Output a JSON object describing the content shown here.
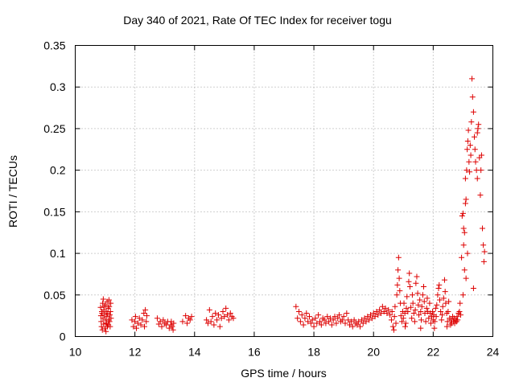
{
  "chart_data": {
    "type": "scatter",
    "title": "Day 340 of 2021, Rate Of TEC Index for receiver togu",
    "xlabel": "GPS time / hours",
    "ylabel": "ROTI / TECUs",
    "xlim": [
      10,
      24
    ],
    "ylim": [
      0,
      0.35
    ],
    "x_ticks": [
      "10",
      "12",
      "14",
      "16",
      "18",
      "20",
      "22",
      "24"
    ],
    "y_ticks": [
      "0",
      "0.05",
      "0.1",
      "0.15",
      "0.2",
      "0.25",
      "0.3",
      "0.35"
    ],
    "grid": true,
    "legend": "none",
    "marker": "+",
    "color": "#dd0000",
    "points": [
      [
        10.85,
        0.035
      ],
      [
        10.87,
        0.018
      ],
      [
        10.88,
        0.012
      ],
      [
        10.9,
        0.028
      ],
      [
        10.92,
        0.04
      ],
      [
        10.93,
        0.022
      ],
      [
        10.95,
        0.015
      ],
      [
        10.96,
        0.032
      ],
      [
        10.98,
        0.026
      ],
      [
        11.0,
        0.01
      ],
      [
        11.01,
        0.02
      ],
      [
        11.02,
        0.038
      ],
      [
        11.04,
        0.03
      ],
      [
        11.05,
        0.016
      ],
      [
        11.06,
        0.024
      ],
      [
        11.07,
        0.042
      ],
      [
        11.08,
        0.012
      ],
      [
        11.09,
        0.028
      ],
      [
        11.1,
        0.034
      ],
      [
        11.12,
        0.02
      ],
      [
        11.13,
        0.044
      ],
      [
        11.15,
        0.018
      ],
      [
        11.16,
        0.026
      ],
      [
        11.18,
        0.03
      ],
      [
        11.2,
        0.022
      ],
      [
        10.86,
        0.025
      ],
      [
        10.91,
        0.008
      ],
      [
        10.97,
        0.036
      ],
      [
        11.03,
        0.006
      ],
      [
        11.11,
        0.014
      ],
      [
        11.14,
        0.036
      ],
      [
        11.17,
        0.012
      ],
      [
        11.19,
        0.04
      ],
      [
        10.89,
        0.03
      ],
      [
        10.94,
        0.045
      ],
      [
        11.9,
        0.02
      ],
      [
        11.95,
        0.012
      ],
      [
        12.0,
        0.018
      ],
      [
        12.02,
        0.024
      ],
      [
        12.05,
        0.01
      ],
      [
        12.1,
        0.016
      ],
      [
        12.15,
        0.022
      ],
      [
        12.2,
        0.014
      ],
      [
        12.25,
        0.02
      ],
      [
        12.3,
        0.028
      ],
      [
        12.32,
        0.012
      ],
      [
        12.35,
        0.032
      ],
      [
        12.38,
        0.018
      ],
      [
        12.4,
        0.025
      ],
      [
        12.75,
        0.022
      ],
      [
        12.8,
        0.015
      ],
      [
        12.85,
        0.018
      ],
      [
        12.9,
        0.012
      ],
      [
        12.95,
        0.02
      ],
      [
        13.0,
        0.016
      ],
      [
        13.05,
        0.014
      ],
      [
        13.1,
        0.018
      ],
      [
        13.15,
        0.01
      ],
      [
        13.2,
        0.014
      ],
      [
        13.25,
        0.012
      ],
      [
        13.3,
        0.016
      ],
      [
        13.28,
        0.008
      ],
      [
        13.22,
        0.018
      ],
      [
        13.6,
        0.018
      ],
      [
        13.7,
        0.025
      ],
      [
        13.75,
        0.016
      ],
      [
        13.8,
        0.022
      ],
      [
        13.85,
        0.02
      ],
      [
        13.9,
        0.024
      ],
      [
        14.4,
        0.02
      ],
      [
        14.45,
        0.016
      ],
      [
        14.5,
        0.032
      ],
      [
        14.55,
        0.018
      ],
      [
        14.6,
        0.024
      ],
      [
        14.65,
        0.014
      ],
      [
        14.7,
        0.028
      ],
      [
        14.75,
        0.02
      ],
      [
        14.8,
        0.026
      ],
      [
        14.85,
        0.012
      ],
      [
        14.9,
        0.022
      ],
      [
        14.95,
        0.03
      ],
      [
        15.0,
        0.024
      ],
      [
        15.05,
        0.034
      ],
      [
        15.1,
        0.026
      ],
      [
        15.15,
        0.02
      ],
      [
        15.2,
        0.028
      ],
      [
        15.25,
        0.024
      ],
      [
        15.3,
        0.022
      ],
      [
        17.4,
        0.036
      ],
      [
        17.45,
        0.022
      ],
      [
        17.5,
        0.03
      ],
      [
        17.55,
        0.018
      ],
      [
        17.6,
        0.026
      ],
      [
        17.65,
        0.014
      ],
      [
        17.7,
        0.022
      ],
      [
        17.75,
        0.028
      ],
      [
        17.8,
        0.018
      ],
      [
        17.85,
        0.024
      ],
      [
        17.9,
        0.016
      ],
      [
        17.95,
        0.02
      ],
      [
        18.0,
        0.012
      ],
      [
        18.05,
        0.022
      ],
      [
        18.1,
        0.016
      ],
      [
        18.15,
        0.026
      ],
      [
        18.2,
        0.018
      ],
      [
        18.25,
        0.014
      ],
      [
        18.3,
        0.022
      ],
      [
        18.35,
        0.02
      ],
      [
        18.4,
        0.016
      ],
      [
        18.45,
        0.024
      ],
      [
        18.5,
        0.018
      ],
      [
        18.55,
        0.022
      ],
      [
        18.6,
        0.014
      ],
      [
        18.65,
        0.02
      ],
      [
        18.7,
        0.024
      ],
      [
        18.75,
        0.016
      ],
      [
        18.8,
        0.022
      ],
      [
        18.85,
        0.026
      ],
      [
        18.9,
        0.018
      ],
      [
        18.95,
        0.02
      ],
      [
        19.0,
        0.024
      ],
      [
        19.05,
        0.016
      ],
      [
        19.1,
        0.028
      ],
      [
        19.15,
        0.02
      ],
      [
        19.2,
        0.014
      ],
      [
        19.25,
        0.018
      ],
      [
        19.3,
        0.012
      ],
      [
        19.35,
        0.02
      ],
      [
        19.4,
        0.016
      ],
      [
        19.45,
        0.014
      ],
      [
        19.5,
        0.018
      ],
      [
        19.55,
        0.012
      ],
      [
        19.6,
        0.02
      ],
      [
        19.65,
        0.016
      ],
      [
        19.7,
        0.022
      ],
      [
        19.75,
        0.018
      ],
      [
        19.8,
        0.024
      ],
      [
        19.85,
        0.02
      ],
      [
        19.9,
        0.026
      ],
      [
        19.95,
        0.022
      ],
      [
        20.0,
        0.028
      ],
      [
        20.05,
        0.024
      ],
      [
        20.1,
        0.03
      ],
      [
        20.15,
        0.026
      ],
      [
        20.2,
        0.032
      ],
      [
        20.25,
        0.028
      ],
      [
        20.3,
        0.036
      ],
      [
        20.35,
        0.03
      ],
      [
        20.4,
        0.034
      ],
      [
        20.45,
        0.028
      ],
      [
        20.5,
        0.032
      ],
      [
        20.55,
        0.026
      ],
      [
        20.6,
        0.02
      ],
      [
        20.62,
        0.03
      ],
      [
        20.65,
        0.012
      ],
      [
        20.7,
        0.024
      ],
      [
        20.72,
        0.036
      ],
      [
        20.75,
        0.016
      ],
      [
        20.78,
        0.05
      ],
      [
        20.8,
        0.062
      ],
      [
        20.82,
        0.08
      ],
      [
        20.84,
        0.095
      ],
      [
        20.86,
        0.07
      ],
      [
        20.88,
        0.055
      ],
      [
        20.9,
        0.04
      ],
      [
        20.92,
        0.025
      ],
      [
        20.95,
        0.018
      ],
      [
        20.98,
        0.03
      ],
      [
        21.0,
        0.022
      ],
      [
        21.02,
        0.04
      ],
      [
        21.05,
        0.028
      ],
      [
        21.08,
        0.016
      ],
      [
        21.1,
        0.034
      ],
      [
        21.12,
        0.048
      ],
      [
        21.15,
        0.03
      ],
      [
        21.18,
        0.066
      ],
      [
        21.2,
        0.076
      ],
      [
        21.22,
        0.06
      ],
      [
        21.25,
        0.035
      ],
      [
        21.28,
        0.022
      ],
      [
        21.3,
        0.05
      ],
      [
        21.32,
        0.04
      ],
      [
        21.35,
        0.028
      ],
      [
        21.38,
        0.018
      ],
      [
        21.4,
        0.032
      ],
      [
        21.42,
        0.064
      ],
      [
        21.45,
        0.072
      ],
      [
        21.48,
        0.052
      ],
      [
        21.5,
        0.038
      ],
      [
        21.52,
        0.026
      ],
      [
        21.55,
        0.044
      ],
      [
        21.58,
        0.03
      ],
      [
        21.6,
        0.02
      ],
      [
        21.62,
        0.036
      ],
      [
        21.65,
        0.05
      ],
      [
        21.68,
        0.06
      ],
      [
        21.7,
        0.042
      ],
      [
        21.72,
        0.028
      ],
      [
        21.75,
        0.018
      ],
      [
        21.78,
        0.034
      ],
      [
        21.8,
        0.046
      ],
      [
        21.82,
        0.03
      ],
      [
        21.85,
        0.022
      ],
      [
        21.88,
        0.04
      ],
      [
        21.9,
        0.028
      ],
      [
        21.92,
        0.016
      ],
      [
        21.95,
        0.024
      ],
      [
        21.98,
        0.03
      ],
      [
        22.0,
        0.02
      ],
      [
        22.02,
        0.026
      ],
      [
        22.05,
        0.018
      ],
      [
        22.08,
        0.034
      ],
      [
        22.1,
        0.024
      ],
      [
        22.12,
        0.038
      ],
      [
        22.15,
        0.05
      ],
      [
        22.18,
        0.058
      ],
      [
        22.2,
        0.062
      ],
      [
        22.22,
        0.044
      ],
      [
        22.25,
        0.03
      ],
      [
        22.28,
        0.02
      ],
      [
        22.3,
        0.026
      ],
      [
        22.32,
        0.036
      ],
      [
        22.35,
        0.046
      ],
      [
        22.38,
        0.068
      ],
      [
        22.4,
        0.054
      ],
      [
        22.42,
        0.04
      ],
      [
        22.45,
        0.028
      ],
      [
        22.48,
        0.018
      ],
      [
        22.5,
        0.03
      ],
      [
        22.52,
        0.042
      ],
      [
        22.55,
        0.022
      ],
      [
        22.58,
        0.014
      ],
      [
        22.6,
        0.02
      ],
      [
        22.62,
        0.016
      ],
      [
        22.65,
        0.024
      ],
      [
        22.68,
        0.018
      ],
      [
        22.7,
        0.022
      ],
      [
        22.72,
        0.016
      ],
      [
        22.75,
        0.02
      ],
      [
        22.78,
        0.018
      ],
      [
        22.8,
        0.024
      ],
      [
        22.82,
        0.02
      ],
      [
        22.85,
        0.028
      ],
      [
        22.88,
        0.03
      ],
      [
        22.9,
        0.04
      ],
      [
        22.92,
        0.026
      ],
      [
        20.68,
        0.008
      ],
      [
        21.06,
        0.012
      ],
      [
        21.58,
        0.01
      ],
      [
        22.04,
        0.01
      ],
      [
        22.46,
        0.012
      ],
      [
        22.95,
        0.095
      ],
      [
        22.97,
        0.145
      ],
      [
        23.0,
        0.148
      ],
      [
        23.02,
        0.11
      ],
      [
        23.05,
        0.125
      ],
      [
        23.08,
        0.16
      ],
      [
        23.1,
        0.165
      ],
      [
        23.12,
        0.2
      ],
      [
        23.14,
        0.225
      ],
      [
        23.16,
        0.235
      ],
      [
        23.18,
        0.248
      ],
      [
        23.2,
        0.21
      ],
      [
        23.22,
        0.198
      ],
      [
        23.24,
        0.23
      ],
      [
        23.26,
        0.218
      ],
      [
        23.28,
        0.258
      ],
      [
        23.3,
        0.31
      ],
      [
        23.32,
        0.288
      ],
      [
        23.35,
        0.27
      ],
      [
        23.38,
        0.24
      ],
      [
        23.4,
        0.225
      ],
      [
        23.42,
        0.21
      ],
      [
        23.45,
        0.2
      ],
      [
        23.48,
        0.19
      ],
      [
        23.5,
        0.25
      ],
      [
        23.52,
        0.255
      ],
      [
        23.55,
        0.215
      ],
      [
        23.58,
        0.17
      ],
      [
        23.6,
        0.2
      ],
      [
        23.62,
        0.218
      ],
      [
        23.65,
        0.13
      ],
      [
        23.68,
        0.11
      ],
      [
        23.7,
        0.09
      ],
      [
        23.72,
        0.102
      ],
      [
        23.0,
        0.05
      ],
      [
        23.05,
        0.08
      ],
      [
        23.1,
        0.07
      ],
      [
        23.15,
        0.1
      ],
      [
        23.35,
        0.058
      ],
      [
        23.02,
        0.13
      ],
      [
        23.08,
        0.19
      ],
      [
        23.48,
        0.245
      ]
    ]
  }
}
